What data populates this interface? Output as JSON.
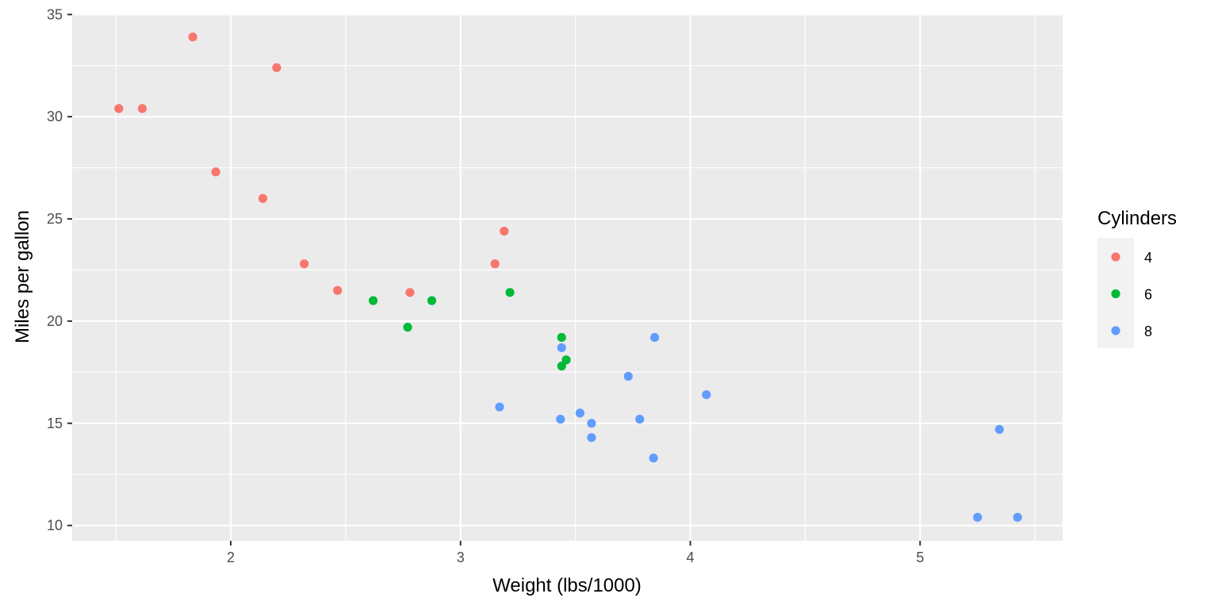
{
  "chart_data": {
    "type": "scatter",
    "xlabel": "Weight (lbs/1000)",
    "ylabel": "Miles per gallon",
    "xlim": [
      1.31,
      5.62
    ],
    "ylim": [
      9.25,
      35.05
    ],
    "x_major_ticks": [
      2,
      3,
      4,
      5
    ],
    "x_tick_labels": [
      "2",
      "3",
      "4",
      "5"
    ],
    "x_minor_gridlines": [
      1.5,
      2.5,
      3.5,
      4.5,
      5.5
    ],
    "y_major_ticks": [
      10,
      15,
      20,
      25,
      30,
      35
    ],
    "y_tick_labels": [
      "10",
      "15",
      "20",
      "25",
      "30",
      "35"
    ],
    "y_minor_gridlines": [
      12.5,
      17.5,
      22.5,
      27.5,
      32.5
    ],
    "grid": true,
    "panel_background": "#ebebeb",
    "legend": {
      "title": "Cylinders",
      "placement": "right"
    },
    "series": [
      {
        "name": "4",
        "color": "#f8766d",
        "points": [
          {
            "x": 1.513,
            "y": 30.4
          },
          {
            "x": 1.615,
            "y": 30.4
          },
          {
            "x": 1.835,
            "y": 33.9
          },
          {
            "x": 1.935,
            "y": 27.3
          },
          {
            "x": 2.14,
            "y": 26.0
          },
          {
            "x": 2.2,
            "y": 32.4
          },
          {
            "x": 2.32,
            "y": 22.8
          },
          {
            "x": 2.465,
            "y": 21.5
          },
          {
            "x": 2.78,
            "y": 21.4
          },
          {
            "x": 3.15,
            "y": 22.8
          },
          {
            "x": 3.19,
            "y": 24.4
          }
        ]
      },
      {
        "name": "6",
        "color": "#00ba38",
        "points": [
          {
            "x": 2.62,
            "y": 21.0
          },
          {
            "x": 2.77,
            "y": 19.7
          },
          {
            "x": 2.875,
            "y": 21.0
          },
          {
            "x": 3.215,
            "y": 21.4
          },
          {
            "x": 3.44,
            "y": 19.2
          },
          {
            "x": 3.44,
            "y": 17.8
          },
          {
            "x": 3.46,
            "y": 18.1
          }
        ]
      },
      {
        "name": "8",
        "color": "#619cff",
        "points": [
          {
            "x": 3.17,
            "y": 15.8
          },
          {
            "x": 3.435,
            "y": 15.2
          },
          {
            "x": 3.44,
            "y": 18.7
          },
          {
            "x": 3.52,
            "y": 15.5
          },
          {
            "x": 3.57,
            "y": 14.3
          },
          {
            "x": 3.57,
            "y": 15.0
          },
          {
            "x": 3.73,
            "y": 17.3
          },
          {
            "x": 3.78,
            "y": 15.2
          },
          {
            "x": 3.84,
            "y": 13.3
          },
          {
            "x": 3.845,
            "y": 19.2
          },
          {
            "x": 4.07,
            "y": 16.4
          },
          {
            "x": 5.25,
            "y": 10.4
          },
          {
            "x": 5.345,
            "y": 14.7
          },
          {
            "x": 5.424,
            "y": 10.4
          }
        ]
      }
    ]
  }
}
